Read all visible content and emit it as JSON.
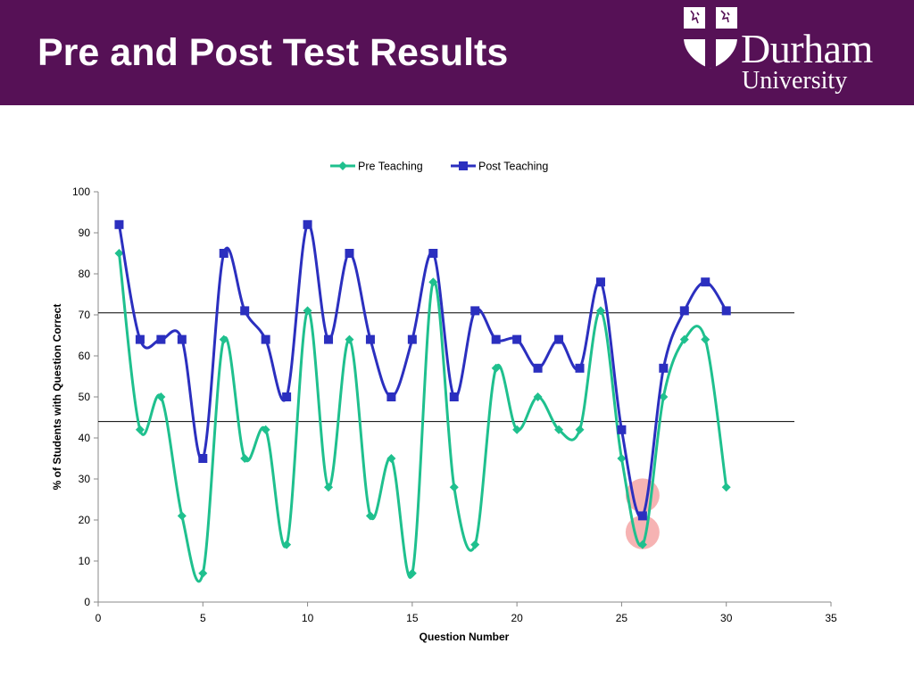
{
  "slide": {
    "title": "Pre and Post Test Results",
    "header_color": "#561156"
  },
  "logo": {
    "line1": "Durham",
    "line2": "University"
  },
  "chart_data": {
    "type": "line",
    "smooth": true,
    "xlabel": "Question Number",
    "ylabel": "% of Students with Question Correct",
    "xlim": [
      0,
      35
    ],
    "ylim": [
      0,
      100
    ],
    "xticks": [
      0,
      5,
      10,
      15,
      20,
      25,
      30,
      35
    ],
    "yticks": [
      0,
      10,
      20,
      30,
      40,
      50,
      60,
      70,
      80,
      90,
      100
    ],
    "legend_position": "top",
    "grid": false,
    "x": [
      1,
      2,
      3,
      4,
      5,
      6,
      7,
      8,
      9,
      10,
      11,
      12,
      13,
      14,
      15,
      16,
      17,
      18,
      19,
      20,
      21,
      22,
      23,
      24,
      25,
      26,
      27,
      28,
      29,
      30
    ],
    "series": [
      {
        "name": "Pre Teaching",
        "color": "#1fc08e",
        "marker": "diamond",
        "values": [
          85,
          42,
          50,
          21,
          7,
          64,
          35,
          42,
          14,
          71,
          28,
          64,
          21,
          35,
          7,
          78,
          28,
          14,
          57,
          42,
          50,
          42,
          42,
          71,
          35,
          14,
          50,
          64,
          64,
          28
        ]
      },
      {
        "name": "Post Teaching",
        "color": "#2b2fbf",
        "marker": "square",
        "values": [
          92,
          64,
          64,
          64,
          35,
          85,
          71,
          64,
          50,
          92,
          64,
          85,
          64,
          50,
          64,
          85,
          50,
          71,
          64,
          64,
          57,
          64,
          57,
          78,
          42,
          21,
          57,
          71,
          78,
          71
        ]
      }
    ],
    "reference_lines": [
      70.5,
      44
    ],
    "highlights": [
      {
        "x": 26,
        "y": 26
      },
      {
        "x": 26,
        "y": 17
      }
    ]
  }
}
